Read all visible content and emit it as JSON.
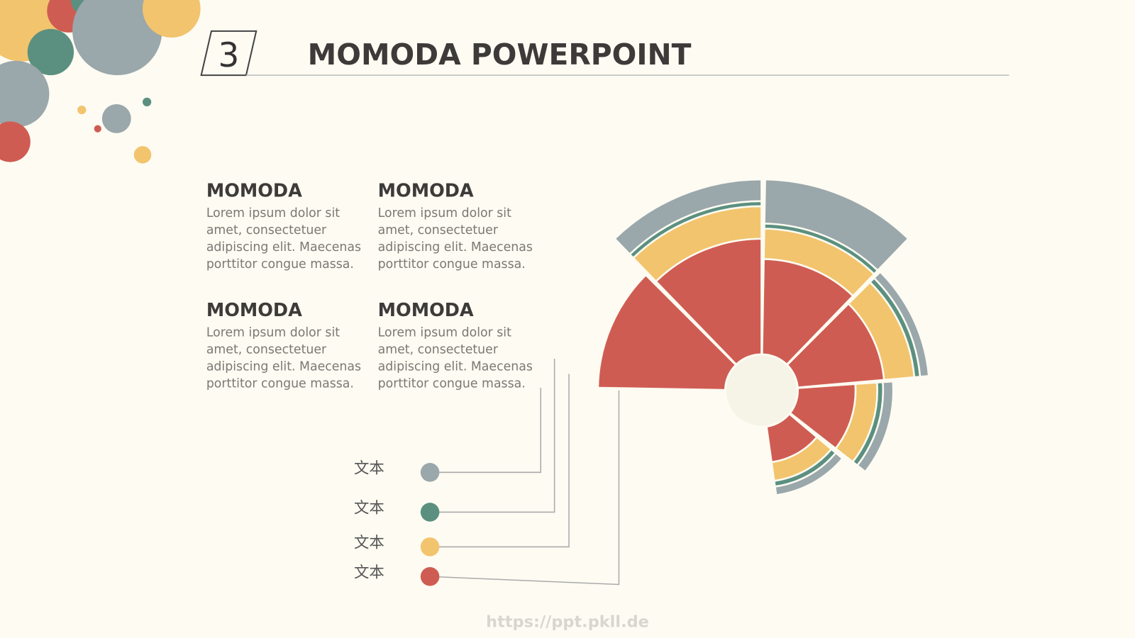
{
  "header": {
    "number": "3",
    "title": "MOMODA POWERPOINT"
  },
  "blocks": [
    {
      "title": "MOMODA",
      "lines": [
        "Lorem ipsum dolor sit",
        "amet, consectetuer",
        "adipiscing elit. Maecenas",
        "porttitor congue massa."
      ]
    },
    {
      "title": "MOMODA",
      "lines": [
        "Lorem ipsum dolor sit",
        "amet, consectetuer",
        "adipiscing elit. Maecenas",
        "porttitor congue massa."
      ]
    },
    {
      "title": "MOMODA",
      "lines": [
        "Lorem ipsum dolor sit",
        "amet, consectetuer",
        "adipiscing elit. Maecenas",
        "porttitor congue massa."
      ]
    },
    {
      "title": "MOMODA",
      "lines": [
        "Lorem ipsum dolor sit",
        "amet, consectetuer",
        "adipiscing elit. Maecenas",
        "porttitor congue massa."
      ]
    }
  ],
  "legend": [
    "文本",
    "文本",
    "文本",
    "文本"
  ],
  "footer": "https://ppt.pkll.de"
}
